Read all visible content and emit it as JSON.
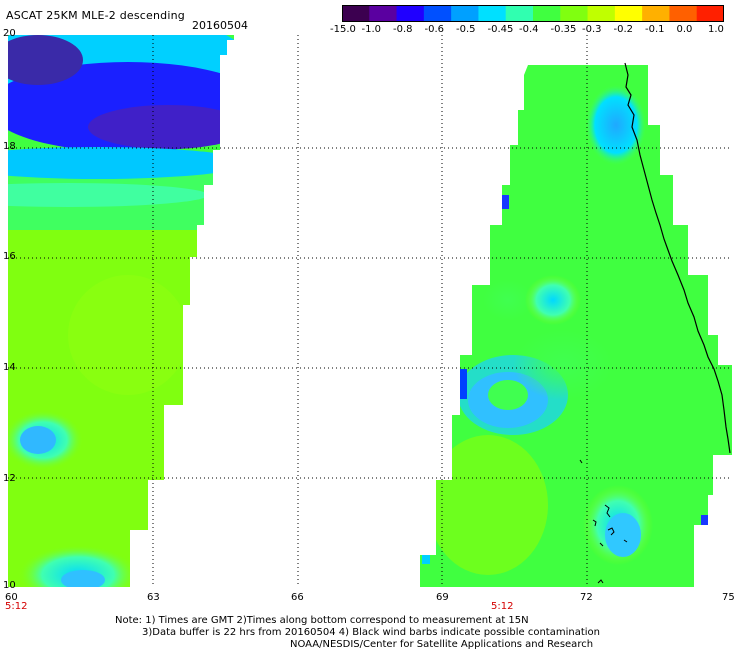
{
  "header": {
    "title": "ASCAT 25KM MLE-2 descending",
    "date": "20160504"
  },
  "colorbar": {
    "labels": [
      "-15.0",
      "-1.0",
      "-0.8",
      "-0.6",
      "-0.5",
      "-0.45",
      "-0.4",
      "-0.35",
      "-0.3",
      "-0.2",
      "-0.1",
      "0.0",
      "1.0"
    ],
    "colors": [
      "#3c0050",
      "#5a00a0",
      "#2000ff",
      "#0050ff",
      "#00a0ff",
      "#00e0ff",
      "#30ffb0",
      "#40ff40",
      "#80ff10",
      "#c0ff00",
      "#ffff00",
      "#ffb000",
      "#ff6000",
      "#ff2000"
    ]
  },
  "axes": {
    "lat_labels": [
      "20",
      "18",
      "16",
      "14",
      "12",
      "10"
    ],
    "lon_labels": [
      "60",
      "63",
      "66",
      "69",
      "72",
      "75"
    ]
  },
  "times": {
    "left": "5:12",
    "right": "5:12"
  },
  "notes": {
    "line1": "Note: 1) Times are GMT 2)Times along bottom correspond to measurement at 15N",
    "line2": "3)Data buffer is 22 hrs from 20160504 4) Black wind barbs indicate possible contamination",
    "line3": "NOAA/NESDIS/Center for Satellite Applications and Research"
  },
  "legend_colors": {
    "swath_base": "#80ff10",
    "swath_green": "#40ff40",
    "swath_cyan": "#00e0ff",
    "swath_lightblue": "#30c8ff",
    "swath_blue": "#0040ff",
    "swath_purple": "#3c10c8",
    "coastline": "#000000",
    "grid": "#000000"
  }
}
